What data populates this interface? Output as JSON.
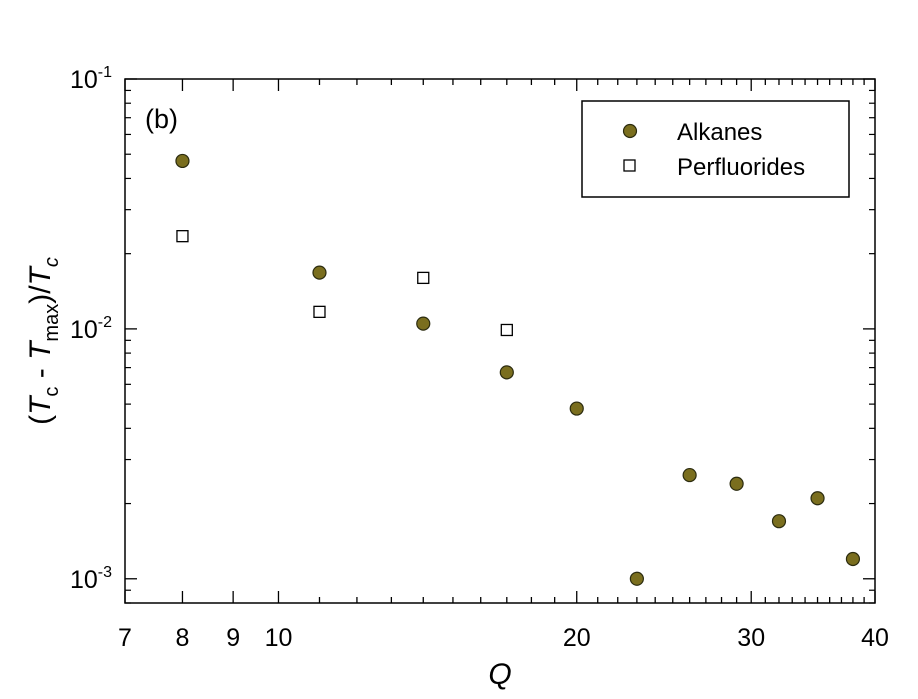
{
  "chart_data": {
    "type": "scatter",
    "panel_label": "(b)",
    "x_scale": "log",
    "y_scale": "log",
    "xlim": [
      7,
      40
    ],
    "ylim": [
      0.0008,
      0.1
    ],
    "x_ticks": [
      7,
      8,
      9,
      10,
      20,
      30,
      40
    ],
    "y_ticks": [
      {
        "value": 0.1,
        "base": "10",
        "exp": "-1"
      },
      {
        "value": 0.01,
        "base": "10",
        "exp": "-2"
      },
      {
        "value": 0.001,
        "base": "10",
        "exp": "-3"
      }
    ],
    "xlabel": "Q",
    "ylabel": {
      "open": "(",
      "T1": "T",
      "sub1": "c",
      "mid": " - ",
      "T2": "T",
      "sub2": "max",
      "close": ")/",
      "T3": "T",
      "sub3": "c"
    },
    "legend_position": "top-right",
    "series": [
      {
        "name": "Alkanes",
        "marker": "circle",
        "color": "#7a6e1e",
        "points": [
          {
            "x": 8,
            "y": 0.047
          },
          {
            "x": 11,
            "y": 0.0168
          },
          {
            "x": 14,
            "y": 0.0105
          },
          {
            "x": 17,
            "y": 0.0067
          },
          {
            "x": 20,
            "y": 0.0048
          },
          {
            "x": 23,
            "y": 0.001
          },
          {
            "x": 26,
            "y": 0.0026
          },
          {
            "x": 29,
            "y": 0.0024
          },
          {
            "x": 32,
            "y": 0.0017
          },
          {
            "x": 35,
            "y": 0.0021
          },
          {
            "x": 38,
            "y": 0.0012
          }
        ]
      },
      {
        "name": "Perfluorides",
        "marker": "square",
        "color": "#ffffff",
        "points": [
          {
            "x": 8,
            "y": 0.0235
          },
          {
            "x": 11,
            "y": 0.0117
          },
          {
            "x": 14,
            "y": 0.016
          },
          {
            "x": 17,
            "y": 0.0099
          }
        ]
      }
    ]
  }
}
